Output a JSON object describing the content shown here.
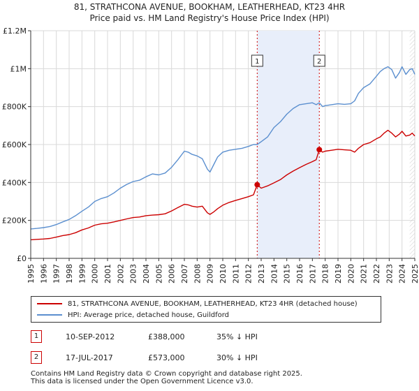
{
  "title": {
    "line1": "81, STRATHCONA AVENUE, BOOKHAM, LEATHERHEAD, KT23 4HR",
    "line2": "Price paid vs. HM Land Registry's House Price Index (HPI)"
  },
  "colors": {
    "price_paid": "#cc0000",
    "hpi": "#5b8fcf",
    "shade": "#e8eefa",
    "grid": "#d9d9d9",
    "marker_line": "#cc0000"
  },
  "chart_data": {
    "type": "line",
    "xlim": [
      1995,
      2025
    ],
    "ylim": [
      0,
      1200000
    ],
    "y_ticks": [
      {
        "value": 0,
        "label": "£0"
      },
      {
        "value": 200000,
        "label": "£200K"
      },
      {
        "value": 400000,
        "label": "£400K"
      },
      {
        "value": 600000,
        "label": "£600K"
      },
      {
        "value": 800000,
        "label": "£800K"
      },
      {
        "value": 1000000,
        "label": "£1M"
      },
      {
        "value": 1200000,
        "label": "£1.2M"
      }
    ],
    "x_ticks": [
      "1995",
      "1996",
      "1997",
      "1998",
      "1999",
      "2000",
      "2001",
      "2002",
      "2003",
      "2004",
      "2005",
      "2006",
      "2007",
      "2008",
      "2009",
      "2010",
      "2011",
      "2012",
      "2013",
      "2014",
      "2015",
      "2016",
      "2017",
      "2018",
      "2019",
      "2020",
      "2021",
      "2022",
      "2023",
      "2024",
      "2025"
    ],
    "shaded_range": [
      2012.69,
      2017.54
    ],
    "hatch_from": 2024.6,
    "series": [
      {
        "name": "81, STRATHCONA AVENUE, BOOKHAM, LEATHERHEAD, KT23 4HR (detached house)",
        "key": "price_paid",
        "x": [
          1995.0,
          1995.5,
          1996.0,
          1996.5,
          1997.0,
          1997.5,
          1998.0,
          1998.5,
          1999.0,
          1999.5,
          2000.0,
          2000.5,
          2001.0,
          2001.5,
          2002.0,
          2002.5,
          2003.0,
          2003.5,
          2004.0,
          2004.5,
          2005.0,
          2005.5,
          2006.0,
          2006.5,
          2007.0,
          2007.3,
          2007.6,
          2008.0,
          2008.4,
          2008.8,
          2009.0,
          2009.3,
          2009.6,
          2010.0,
          2010.5,
          2011.0,
          2011.5,
          2012.0,
          2012.4,
          2012.69,
          2013.0,
          2013.5,
          2014.0,
          2014.5,
          2015.0,
          2015.5,
          2016.0,
          2016.5,
          2017.0,
          2017.3,
          2017.54,
          2017.8,
          2018.0,
          2018.5,
          2019.0,
          2019.5,
          2020.0,
          2020.3,
          2020.6,
          2021.0,
          2021.5,
          2022.0,
          2022.3,
          2022.6,
          2022.9,
          2023.2,
          2023.5,
          2023.8,
          2024.0,
          2024.3,
          2024.6,
          2024.8,
          2025.0
        ],
        "y": [
          98000,
          100000,
          102000,
          105000,
          112000,
          120000,
          125000,
          135000,
          150000,
          160000,
          175000,
          182000,
          185000,
          192000,
          200000,
          208000,
          215000,
          218000,
          225000,
          228000,
          230000,
          235000,
          250000,
          268000,
          285000,
          282000,
          275000,
          270000,
          275000,
          240000,
          232000,
          245000,
          262000,
          280000,
          295000,
          305000,
          315000,
          325000,
          335000,
          388000,
          370000,
          382000,
          398000,
          415000,
          440000,
          460000,
          478000,
          495000,
          510000,
          520000,
          573000,
          560000,
          565000,
          570000,
          575000,
          572000,
          570000,
          560000,
          580000,
          600000,
          610000,
          630000,
          640000,
          660000,
          675000,
          660000,
          640000,
          655000,
          670000,
          645000,
          650000,
          660000,
          645000
        ]
      },
      {
        "name": "HPI: Average price, detached house, Guildford",
        "key": "hpi",
        "x": [
          1995.0,
          1995.5,
          1996.0,
          1996.5,
          1997.0,
          1997.5,
          1998.0,
          1998.5,
          1999.0,
          1999.5,
          2000.0,
          2000.5,
          2001.0,
          2001.5,
          2002.0,
          2002.5,
          2003.0,
          2003.5,
          2004.0,
          2004.5,
          2005.0,
          2005.5,
          2006.0,
          2006.5,
          2007.0,
          2007.3,
          2007.6,
          2008.0,
          2008.4,
          2008.8,
          2009.0,
          2009.3,
          2009.6,
          2010.0,
          2010.5,
          2011.0,
          2011.5,
          2012.0,
          2012.4,
          2012.69,
          2013.0,
          2013.5,
          2014.0,
          2014.5,
          2015.0,
          2015.5,
          2016.0,
          2016.5,
          2017.0,
          2017.3,
          2017.54,
          2017.8,
          2018.0,
          2018.5,
          2019.0,
          2019.5,
          2020.0,
          2020.3,
          2020.6,
          2021.0,
          2021.5,
          2022.0,
          2022.3,
          2022.6,
          2022.9,
          2023.2,
          2023.5,
          2023.8,
          2024.0,
          2024.3,
          2024.6,
          2024.8,
          2025.0
        ],
        "y": [
          155000,
          158000,
          162000,
          168000,
          178000,
          192000,
          205000,
          225000,
          248000,
          270000,
          300000,
          315000,
          325000,
          345000,
          370000,
          390000,
          405000,
          412000,
          430000,
          445000,
          440000,
          450000,
          480000,
          520000,
          565000,
          560000,
          548000,
          540000,
          525000,
          470000,
          455000,
          495000,
          535000,
          560000,
          570000,
          575000,
          580000,
          590000,
          600000,
          600000,
          615000,
          640000,
          690000,
          720000,
          760000,
          790000,
          810000,
          815000,
          820000,
          810000,
          820000,
          800000,
          805000,
          810000,
          815000,
          812000,
          815000,
          830000,
          870000,
          900000,
          920000,
          960000,
          985000,
          1000000,
          1010000,
          995000,
          950000,
          980000,
          1010000,
          970000,
          995000,
          1000000,
          970000
        ]
      }
    ],
    "transactions": [
      {
        "num": "1",
        "x": 2012.69,
        "y": 388000
      },
      {
        "num": "2",
        "x": 2017.54,
        "y": 573000
      }
    ]
  },
  "legend": {
    "items": [
      {
        "label": "81, STRATHCONA AVENUE, BOOKHAM, LEATHERHEAD, KT23 4HR (detached house)"
      },
      {
        "label": "HPI: Average price, detached house, Guildford"
      }
    ]
  },
  "table": {
    "rows": [
      {
        "num": "1",
        "date": "10-SEP-2012",
        "price": "£388,000",
        "hpi": "35% ↓ HPI"
      },
      {
        "num": "2",
        "date": "17-JUL-2017",
        "price": "£573,000",
        "hpi": "30% ↓ HPI"
      }
    ]
  },
  "footer": {
    "line1": "Contains HM Land Registry data © Crown copyright and database right 2025.",
    "line2": "This data is licensed under the Open Government Licence v3.0."
  }
}
